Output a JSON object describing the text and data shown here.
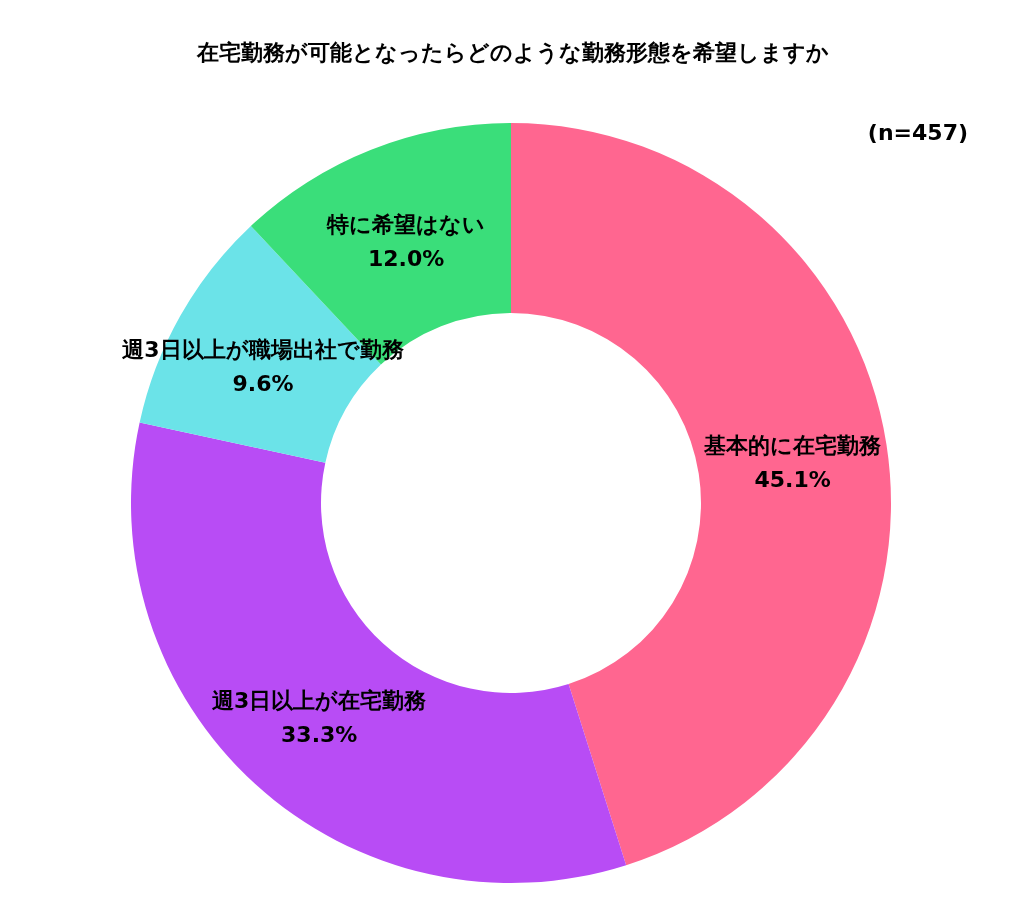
{
  "chart_data": {
    "type": "donut",
    "title": "在宅勤務が可能となったらどのような勤務形態を希望しますか",
    "annotations": [
      "(n=457)"
    ],
    "categories": [
      "基本的に在宅勤務",
      "週3日以上が在宅勤務",
      "週3日以上が職場出社で勤務",
      "特に希望はない"
    ],
    "values": [
      45.1,
      33.3,
      9.6,
      12.0
    ],
    "colors": [
      "#ff6690",
      "#b84cf5",
      "#6be3e8",
      "#3ade7a"
    ],
    "value_labels": [
      "45.1%",
      "33.3%",
      "9.6%",
      "12.0%"
    ]
  }
}
